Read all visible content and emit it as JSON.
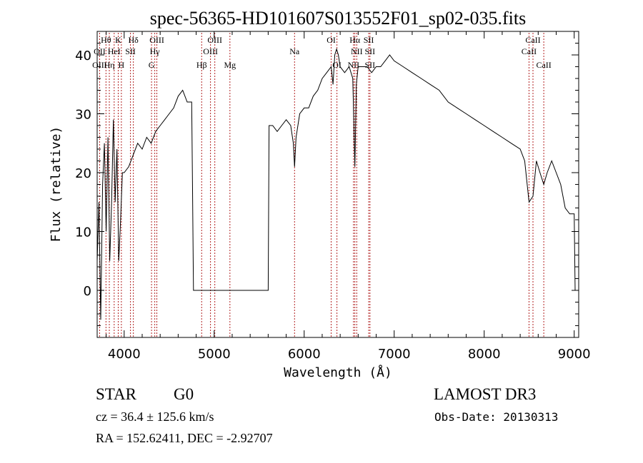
{
  "chart_data": {
    "type": "line",
    "title": "spec-56365-HD101607S013552F01_sp02-035.fits",
    "xlabel": "Wavelength (Å)",
    "ylabel": "Flux (relative)",
    "xlim": [
      3700,
      9050
    ],
    "ylim": [
      -8,
      44
    ],
    "x_ticks": [
      4000,
      5000,
      6000,
      7000,
      8000,
      9000
    ],
    "y_ticks": [
      0,
      10,
      20,
      30,
      40
    ],
    "grid": false,
    "series": [
      {
        "x": [
          3700,
          3720,
          3740,
          3760,
          3780,
          3800,
          3820,
          3840,
          3860,
          3880,
          3900,
          3920,
          3940,
          3960,
          3980,
          4000,
          4050,
          4100,
          4150,
          4200,
          4250,
          4300,
          4350,
          4400,
          4450,
          4500,
          4550,
          4600,
          4650,
          4700,
          4750,
          4760,
          4770,
          4800,
          5000,
          5400,
          5600,
          5610,
          5650,
          5700,
          5750,
          5800,
          5850,
          5880,
          5893,
          5910,
          5950,
          6000,
          6050,
          6100,
          6150,
          6200,
          6250,
          6300,
          6320,
          6340,
          6360,
          6380,
          6400,
          6450,
          6500,
          6540,
          6563,
          6580,
          6600,
          6650,
          6700,
          6750,
          6800,
          6850,
          6900,
          6950,
          7000,
          7100,
          7200,
          7300,
          7400,
          7500,
          7600,
          7700,
          7800,
          7900,
          8000,
          8100,
          8200,
          8300,
          8400,
          8450,
          8498,
          8542,
          8580,
          8620,
          8662,
          8700,
          8750,
          8800,
          8850,
          8900,
          8950,
          9000,
          9010
        ],
        "y": [
          5,
          15,
          -5,
          18,
          25,
          10,
          26,
          5,
          15,
          29,
          15,
          24,
          5,
          12,
          20,
          20,
          21,
          23,
          25,
          24,
          26,
          25,
          27,
          28,
          29,
          30,
          31,
          33,
          34,
          32,
          32,
          17,
          0,
          0,
          0,
          0,
          0,
          28,
          28,
          27,
          28,
          29,
          28,
          25,
          21,
          26,
          30,
          31,
          31,
          33,
          34,
          36,
          37,
          38,
          35,
          40,
          41,
          40,
          38,
          37,
          38,
          36,
          21,
          35,
          38,
          38,
          38,
          37,
          38,
          38,
          39,
          40,
          39,
          38,
          37,
          36,
          35,
          34,
          32,
          31,
          30,
          29,
          28,
          27,
          26,
          25,
          24,
          22,
          15,
          16,
          22,
          20,
          18,
          20,
          22,
          20,
          18,
          14,
          13,
          13,
          0
        ]
      }
    ],
    "line_markers": [
      {
        "label": "Hθ",
        "x": 3798,
        "row": 0
      },
      {
        "label": "OII",
        "x": 3727,
        "row": 1
      },
      {
        "label": "OIII",
        "x": 3727,
        "row": 2
      },
      {
        "label": "K",
        "x": 3934,
        "row": 0
      },
      {
        "label": "HeI",
        "x": 3889,
        "row": 1
      },
      {
        "label": "Hη",
        "x": 3835,
        "row": 2
      },
      {
        "label": "Hδ",
        "x": 4102,
        "row": 0
      },
      {
        "label": "SII",
        "x": 4070,
        "row": 1
      },
      {
        "label": "H",
        "x": 3969,
        "row": 2
      },
      {
        "label": "OIII",
        "x": 4363,
        "row": 0
      },
      {
        "label": "Hγ",
        "x": 4340,
        "row": 1
      },
      {
        "label": "G",
        "x": 4304,
        "row": 2
      },
      {
        "label": "OIII",
        "x": 5007,
        "row": 0
      },
      {
        "label": "OIII",
        "x": 4959,
        "row": 1
      },
      {
        "label": "Hβ",
        "x": 4861,
        "row": 2
      },
      {
        "label": "Mg",
        "x": 5175,
        "row": 2
      },
      {
        "label": "Na",
        "x": 5893,
        "row": 1
      },
      {
        "label": "OI",
        "x": 6300,
        "row": 0
      },
      {
        "label": "OI",
        "x": 6364,
        "row": 2
      },
      {
        "label": "Hα",
        "x": 6563,
        "row": 0
      },
      {
        "label": "NII",
        "x": 6584,
        "row": 1
      },
      {
        "label": "NII",
        "x": 6548,
        "row": 2
      },
      {
        "label": "SII",
        "x": 6717,
        "row": 0
      },
      {
        "label": "SII",
        "x": 6731,
        "row": 1
      },
      {
        "label": "SII",
        "x": 6731,
        "row": 2
      },
      {
        "label": "CaII",
        "x": 8498,
        "row": 1
      },
      {
        "label": "CaII",
        "x": 8542,
        "row": 0
      },
      {
        "label": "CaII",
        "x": 8662,
        "row": 2
      }
    ]
  },
  "info": {
    "class_label": "STAR",
    "subclass": "G0",
    "survey": "LAMOST DR3",
    "cz": "cz = 36.4 ± 125.6 km/s",
    "obs_date": "Obs-Date: 20130313",
    "coords": "RA = 152.62411, DEC =  -2.92707"
  },
  "colors": {
    "spectrum": "#000000",
    "marker_line": "#b22222",
    "axis": "#000000"
  }
}
